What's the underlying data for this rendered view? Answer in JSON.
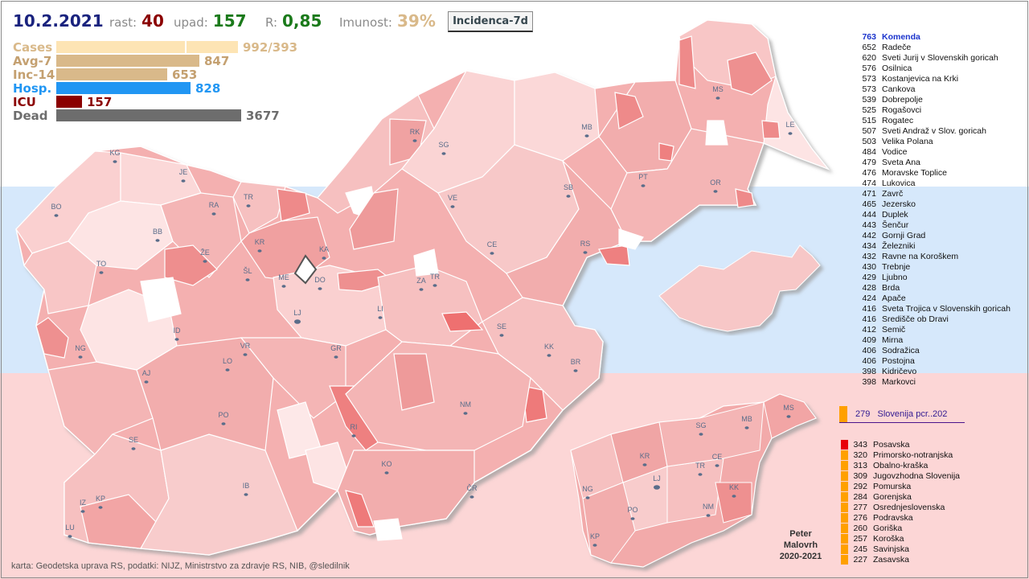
{
  "header": {
    "date": "10.2.2021",
    "rast_label": "rast:",
    "rast_value": "40",
    "upad_label": "upad:",
    "upad_value": "157",
    "r_label": "R:",
    "r_value": "0,85",
    "imunost_label": "Imunost:",
    "imunost_value": "39%",
    "incidence_button": "Incidenca-7d"
  },
  "stats": {
    "cases": {
      "label": "Cases",
      "value": "992/393",
      "color": "#fde4b4"
    },
    "avg7": {
      "label": "Avg-7",
      "value": "847",
      "color": "#d9b98a"
    },
    "inc14": {
      "label": "Inc-14",
      "value": "653",
      "color": "#d9b98a"
    },
    "hosp": {
      "label": "Hosp.",
      "value": "828",
      "color": "#2196f3"
    },
    "icu": {
      "label": "ICU",
      "value": "157",
      "color": "#8b0000"
    },
    "dead": {
      "label": "Dead",
      "value": "3677",
      "color": "#6d6d6d"
    }
  },
  "ranking": [
    {
      "v": "763",
      "n": "Komenda"
    },
    {
      "v": "652",
      "n": "Radeče"
    },
    {
      "v": "620",
      "n": "Sveti Jurij v Slovenskih goricah"
    },
    {
      "v": "576",
      "n": "Osilnica"
    },
    {
      "v": "573",
      "n": "Kostanjevica na Krki"
    },
    {
      "v": "573",
      "n": "Cankova"
    },
    {
      "v": "539",
      "n": "Dobrepolje"
    },
    {
      "v": "525",
      "n": "Rogašovci"
    },
    {
      "v": "515",
      "n": "Rogatec"
    },
    {
      "v": "507",
      "n": "Sveti Andraž v Slov. goricah"
    },
    {
      "v": "503",
      "n": "Velika Polana"
    },
    {
      "v": "484",
      "n": "Vodice"
    },
    {
      "v": "479",
      "n": "Sveta Ana"
    },
    {
      "v": "476",
      "n": "Moravske Toplice"
    },
    {
      "v": "474",
      "n": "Lukovica"
    },
    {
      "v": "471",
      "n": "Zavrč"
    },
    {
      "v": "465",
      "n": "Jezersko"
    },
    {
      "v": "444",
      "n": "Duplek"
    },
    {
      "v": "443",
      "n": "Šenčur"
    },
    {
      "v": "442",
      "n": "Gornji Grad"
    },
    {
      "v": "434",
      "n": "Železniki"
    },
    {
      "v": "432",
      "n": "Ravne na Koroškem"
    },
    {
      "v": "430",
      "n": "Trebnje"
    },
    {
      "v": "429",
      "n": "Ljubno"
    },
    {
      "v": "428",
      "n": "Brda"
    },
    {
      "v": "424",
      "n": "Apače"
    },
    {
      "v": "416",
      "n": "Sveta Trojica v Slovenskih goricah"
    },
    {
      "v": "416",
      "n": "Središče ob Dravi"
    },
    {
      "v": "412",
      "n": "Semič"
    },
    {
      "v": "409",
      "n": "Mirna"
    },
    {
      "v": "406",
      "n": "Sodražica"
    },
    {
      "v": "406",
      "n": "Postojna"
    },
    {
      "v": "398",
      "n": "Kidričevo"
    },
    {
      "v": "398",
      "n": "Markovci"
    }
  ],
  "slovenia": {
    "value": "279",
    "label": "Slovenija  pcr..202",
    "color": "#ffa000"
  },
  "regions": [
    {
      "v": "343",
      "n": "Posavska",
      "color": "#e8000b"
    },
    {
      "v": "320",
      "n": "Primorsko-notranjska",
      "color": "#ffa000"
    },
    {
      "v": "313",
      "n": "Obalno-kraška",
      "color": "#ffa000"
    },
    {
      "v": "309",
      "n": "Jugovzhodna Slovenija",
      "color": "#ffa000"
    },
    {
      "v": "292",
      "n": "Pomurska",
      "color": "#ffa000"
    },
    {
      "v": "284",
      "n": "Gorenjska",
      "color": "#ffa000"
    },
    {
      "v": "277",
      "n": "Osrednjeslovenska",
      "color": "#ffa000"
    },
    {
      "v": "276",
      "n": "Podravska",
      "color": "#ffa000"
    },
    {
      "v": "260",
      "n": "Goriška",
      "color": "#ffa000"
    },
    {
      "v": "257",
      "n": "Koroška",
      "color": "#ffa000"
    },
    {
      "v": "245",
      "n": "Savinjska",
      "color": "#ffa000"
    },
    {
      "v": "227",
      "n": "Zasavska",
      "color": "#ffa000"
    }
  ],
  "author": {
    "line1": "Peter",
    "line2": "Malovrh",
    "line3": "2020-2021"
  },
  "credits": "karta: Geodetska uprava RS,  podatki: NIJZ, Ministrstvo za zdravje RS, NIB, @sledilnik",
  "cities": [
    "KG",
    "JE",
    "BO",
    "RA",
    "TR",
    "RK",
    "SG",
    "MB",
    "MS",
    "LE",
    "BB",
    "KR",
    "KA",
    "VE",
    "SB",
    "PT",
    "OR",
    "TO",
    "ŽE",
    "ŠL",
    "ME",
    "DO",
    "ZA",
    "TR",
    "CE",
    "RS",
    "LJ",
    "LI",
    "SE",
    "KK",
    "BR",
    "ID",
    "NG",
    "VR",
    "GR",
    "LO",
    "AJ",
    "PO",
    "RI",
    "NM",
    "SE",
    "KO",
    "ČR",
    "IB",
    "IZ",
    "KP",
    "LU"
  ],
  "mini_cities": [
    "MS",
    "SG",
    "MB",
    "KR",
    "CE",
    "TR",
    "LJ",
    "NG",
    "PO",
    "NM",
    "KK",
    "KP"
  ]
}
